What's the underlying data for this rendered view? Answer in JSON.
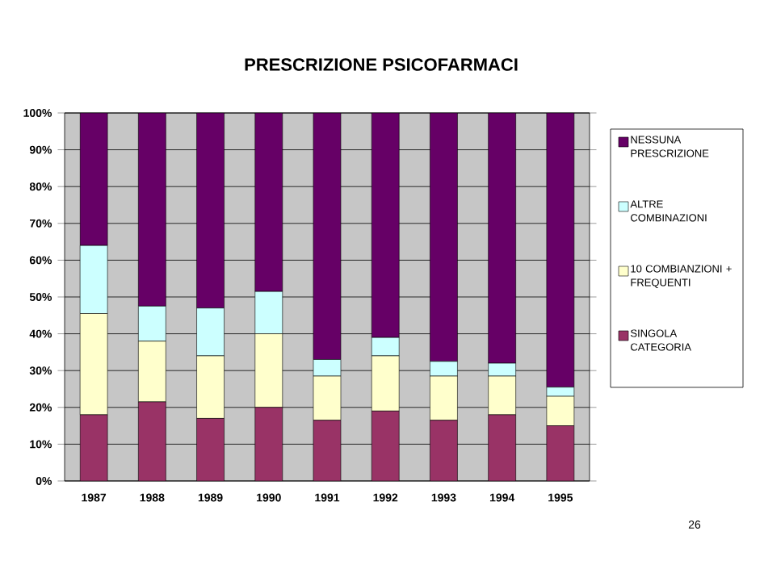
{
  "chart_data": {
    "type": "bar",
    "stacked": true,
    "title": "PRESCRIZIONE PSICOFARMACI",
    "categories": [
      "1987",
      "1988",
      "1989",
      "1990",
      "1991",
      "1992",
      "1993",
      "1994",
      "1995"
    ],
    "series": [
      {
        "name": "SINGOLA CATEGORIA",
        "color": "#993366",
        "values": [
          18,
          21.5,
          17,
          20,
          16.5,
          19,
          16.5,
          18,
          15
        ]
      },
      {
        "name": "10 COMBIANZIONI + FREQUENTI",
        "color": "#ffffcc",
        "values": [
          27.5,
          16.5,
          17,
          20,
          12,
          15,
          12,
          10.5,
          8
        ]
      },
      {
        "name": "ALTRE COMBINAZIONI",
        "color": "#ccffff",
        "values": [
          18.5,
          9.5,
          13,
          11.5,
          4.5,
          5,
          4,
          3.5,
          2.5
        ]
      },
      {
        "name": "NESSUNA PRESCRIZIONE",
        "color": "#660066",
        "values": [
          36,
          52.5,
          53,
          48.5,
          67,
          61,
          67.5,
          68,
          74.5
        ]
      }
    ],
    "ylim": [
      0,
      100
    ],
    "yticks": [
      {
        "value": 0,
        "label": "0%"
      },
      {
        "value": 10,
        "label": "10%"
      },
      {
        "value": 20,
        "label": "20%"
      },
      {
        "value": 30,
        "label": "30%"
      },
      {
        "value": 40,
        "label": "40%"
      },
      {
        "value": 50,
        "label": "50%"
      },
      {
        "value": 60,
        "label": "60%"
      },
      {
        "value": 70,
        "label": "70%"
      },
      {
        "value": 80,
        "label": "80%"
      },
      {
        "value": 90,
        "label": "90%"
      },
      {
        "value": 100,
        "label": "100%"
      }
    ],
    "grid": "y",
    "legend": "right",
    "annotations": [
      "26"
    ]
  }
}
